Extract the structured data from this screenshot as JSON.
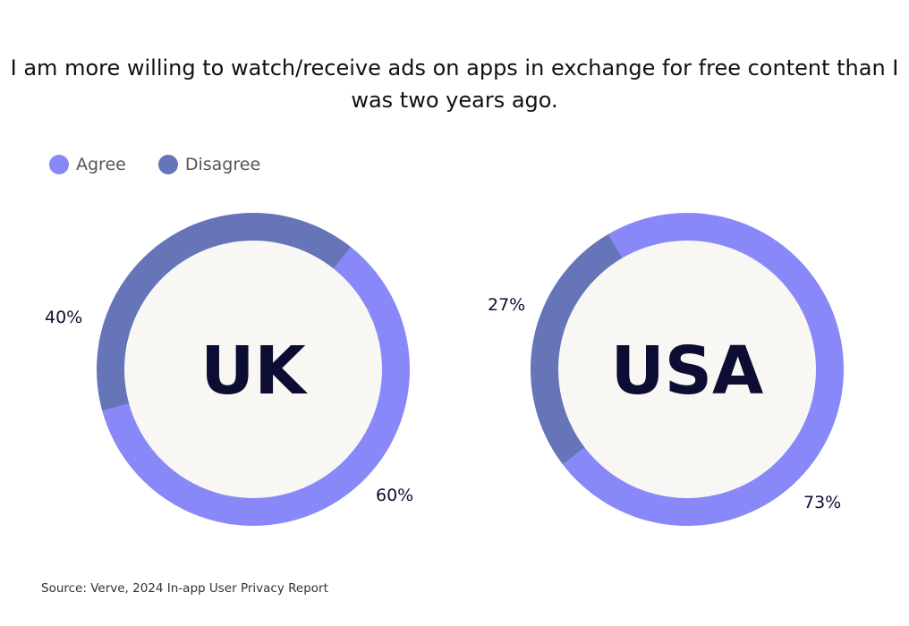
{
  "chart_data": {
    "type": "pie",
    "variant": "donut",
    "title": "I am more willing to watch/receive ads on apps in exchange for free content than I was two years ago.",
    "legend": [
      {
        "label": "Agree",
        "color": "#8888f8"
      },
      {
        "label": "Disagree",
        "color": "#6674b8"
      }
    ],
    "legend_position": "top-left",
    "charts": [
      {
        "center_label": "UK",
        "slices": [
          {
            "name": "Agree",
            "value": 60,
            "label": "60%"
          },
          {
            "name": "Disagree",
            "value": 40,
            "label": "40%"
          }
        ]
      },
      {
        "center_label": "USA",
        "slices": [
          {
            "name": "Agree",
            "value": 73,
            "label": "73%"
          },
          {
            "name": "Disagree",
            "value": 27,
            "label": "27%"
          }
        ]
      }
    ]
  },
  "colors": {
    "agree": "#8888f8",
    "disagree": "#6674b8",
    "center": "#f8f7f4",
    "text": "#0d0d33"
  },
  "source": "Source: Verve, 2024 In-app User Privacy Report"
}
